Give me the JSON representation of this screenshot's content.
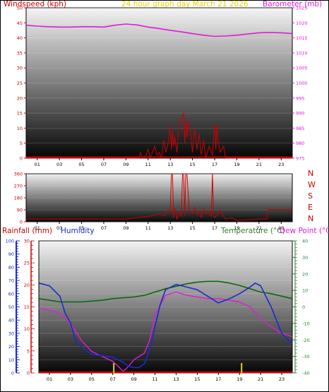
{
  "colors": {
    "red": "#cc0000",
    "magenta": "#e01cd8",
    "yellow": "#e6d200",
    "blue": "#1a2ccc",
    "green": "#2e7d2e",
    "darkgreen": "#0a6a0a"
  },
  "top": {
    "left_title": "Windspeed (kph)",
    "center_title": "24 hour graph day   March 21 2026",
    "right_title": "Barometer (mb)",
    "chart_data": {
      "type": "line",
      "x_ticks": [
        "01",
        "03",
        "05",
        "07",
        "09",
        "11",
        "13",
        "15",
        "17",
        "19",
        "21",
        "23"
      ],
      "windspeed": {
        "name": "Windspeed",
        "ylim": [
          0,
          50
        ],
        "y_ticks": [
          "0",
          "5",
          "10",
          "15",
          "20",
          "25",
          "30",
          "35",
          "40",
          "45",
          "50"
        ],
        "x": [
          0,
          10.2,
          10.3,
          10.5,
          10.8,
          11,
          11.2,
          11.4,
          11.6,
          11.8,
          12,
          12.2,
          12.4,
          12.6,
          12.8,
          13,
          13.1,
          13.2,
          13.3,
          13.4,
          13.6,
          13.8,
          14,
          14.2,
          14.3,
          14.4,
          14.5,
          14.6,
          14.8,
          15,
          15.2,
          15.4,
          15.6,
          15.8,
          16,
          16.2,
          16.5,
          16.8,
          17,
          17.1,
          17.2,
          17.3,
          17.5,
          17.8,
          18,
          24
        ],
        "y": [
          0,
          0,
          2,
          0,
          1,
          3,
          0,
          2,
          4,
          1,
          2,
          0,
          6,
          2,
          5,
          11,
          3,
          9,
          4,
          7,
          2,
          12,
          13,
          15,
          5,
          13,
          7,
          12,
          9,
          2,
          10,
          3,
          8,
          1,
          6,
          0,
          4,
          1,
          11,
          3,
          11,
          6,
          2,
          4,
          0,
          0
        ]
      },
      "barometer": {
        "name": "Barometer",
        "ylim": [
          975,
          1025
        ],
        "y_ticks": [
          "975",
          "980",
          "985",
          "990",
          "995",
          "1000",
          "1005",
          "1010",
          "1015",
          "1020",
          "1025"
        ],
        "x": [
          0,
          1,
          2,
          3,
          4,
          5,
          6,
          7,
          8,
          9,
          10,
          11,
          12,
          13,
          14,
          15,
          16,
          17,
          18,
          19,
          20,
          21,
          22,
          23,
          24
        ],
        "y": [
          1019.2,
          1018.9,
          1018.7,
          1018.6,
          1018.6,
          1018.7,
          1018.7,
          1018.6,
          1019.2,
          1019.6,
          1019.3,
          1018.6,
          1018.1,
          1017.5,
          1017,
          1016.4,
          1015.9,
          1015.5,
          1015.6,
          1015.9,
          1016.3,
          1016.7,
          1016.8,
          1016.7,
          1016.4
        ]
      }
    }
  },
  "middle": {
    "compass": [
      "N",
      "W",
      "S",
      "E",
      "N"
    ],
    "chart_data": {
      "type": "line",
      "name": "Wind direction",
      "ylim": [
        0,
        360
      ],
      "y_ticks": [
        "0",
        "90",
        "180",
        "270",
        "360"
      ],
      "x_ticks": [
        "01",
        "03",
        "05",
        "07",
        "09",
        "11",
        "13",
        "15",
        "17",
        "19",
        "21",
        "23"
      ],
      "x": [
        0,
        9,
        10,
        11,
        12,
        12.5,
        12.8,
        13,
        13.1,
        13.2,
        13.3,
        13.4,
        13.5,
        13.6,
        13.8,
        14,
        14.1,
        14.2,
        14.3,
        14.4,
        14.5,
        14.7,
        15,
        15.2,
        15.4,
        15.6,
        15.8,
        16,
        16.2,
        16.5,
        16.7,
        16.8,
        16.9,
        17,
        17.2,
        17.5,
        17.8,
        18,
        18.5,
        19,
        20,
        21,
        21.7,
        21.8,
        24
      ],
      "y": [
        20,
        20,
        30,
        40,
        60,
        45,
        90,
        80,
        360,
        360,
        30,
        100,
        80,
        20,
        70,
        40,
        360,
        360,
        50,
        360,
        360,
        90,
        60,
        110,
        50,
        80,
        30,
        100,
        60,
        70,
        40,
        360,
        60,
        30,
        50,
        90,
        40,
        20,
        30,
        10,
        15,
        20,
        20,
        90,
        90
      ]
    }
  },
  "bottom": {
    "rain_title": "Rainfall (mm)",
    "humidity_title": "Humidity",
    "temp_title": "Temperature (°C)",
    "dew_title": "Dew Point (°C)",
    "chart_data": {
      "type": "line",
      "x_ticks": [
        "01",
        "03",
        "05",
        "07",
        "09",
        "11",
        "13",
        "15",
        "17",
        "19",
        "21",
        "23"
      ],
      "humidity_axis": {
        "ylim": [
          0,
          100
        ],
        "y_ticks": [
          "0",
          "10",
          "20",
          "30",
          "40",
          "50",
          "60",
          "70",
          "80",
          "90",
          "100"
        ]
      },
      "rain_axis": {
        "ylim": [
          0,
          30
        ],
        "y_ticks": [
          "0",
          "5",
          "10",
          "15",
          "20",
          "25",
          "30"
        ]
      },
      "temp_axis": {
        "ylim": [
          -40,
          40
        ],
        "y_ticks": [
          "-40",
          "-30",
          "-20",
          "-10",
          "0",
          "10",
          "20",
          "30",
          "40"
        ]
      },
      "temperature": {
        "name": "Temperature",
        "x": [
          0,
          1,
          2,
          3,
          4,
          5,
          6,
          7,
          8,
          9,
          10,
          11,
          12,
          13,
          14,
          15,
          16,
          17,
          18,
          19,
          20,
          21,
          22,
          23,
          24
        ],
        "y": [
          5,
          4,
          3,
          3,
          3,
          3.5,
          4,
          5,
          5.5,
          6,
          7,
          9,
          11,
          12.5,
          14,
          15,
          15.5,
          15.5,
          14.5,
          13,
          11,
          9,
          8,
          6.5,
          5
        ]
      },
      "dewpoint": {
        "name": "Dew Point",
        "x": [
          0,
          1,
          2,
          3,
          4,
          5,
          6,
          7,
          7.5,
          8,
          8.5,
          9,
          9.5,
          10,
          10.5,
          11,
          12,
          13,
          14,
          15,
          16,
          17,
          18,
          19,
          20,
          21,
          22,
          23,
          24
        ],
        "y": [
          -1,
          -2,
          -4,
          -10,
          -20,
          -27,
          -30,
          -33,
          -36,
          -39,
          -36,
          -32,
          -30,
          -28,
          -20,
          -5,
          7,
          9,
          7,
          6,
          5,
          5,
          4,
          3,
          0,
          -7,
          -12,
          -16,
          -18
        ]
      },
      "humidity": {
        "name": "Humidity",
        "x": [
          0,
          1,
          2,
          2.5,
          3,
          3.5,
          4,
          5,
          6,
          7,
          7.5,
          8,
          8.5,
          9,
          9.5,
          10,
          10.5,
          11,
          11.5,
          12,
          13,
          14,
          15,
          16,
          17,
          18,
          19,
          20,
          20.5,
          21,
          22,
          23,
          24
        ],
        "y": [
          68,
          66,
          58,
          45,
          38,
          24,
          20,
          14,
          13,
          12,
          10,
          8,
          5,
          4,
          4,
          7,
          18,
          35,
          52,
          63,
          67,
          65,
          63,
          58,
          53,
          56,
          60,
          65,
          68,
          66,
          50,
          30,
          22
        ]
      },
      "rainfall": {
        "name": "Rainfall",
        "x": [
          0,
          24
        ],
        "y": [
          0,
          0
        ]
      },
      "yellow_marks_hours": [
        7.1,
        19.2
      ]
    }
  }
}
